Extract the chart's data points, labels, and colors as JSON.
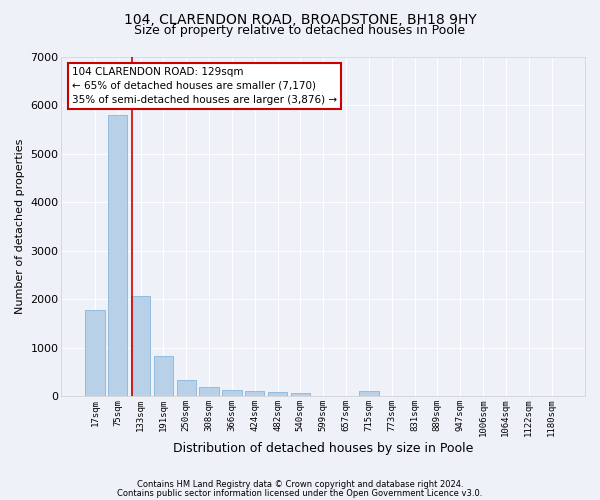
{
  "title1": "104, CLARENDON ROAD, BROADSTONE, BH18 9HY",
  "title2": "Size of property relative to detached houses in Poole",
  "xlabel": "Distribution of detached houses by size in Poole",
  "ylabel": "Number of detached properties",
  "bar_color": "#b8d0e8",
  "bar_edge_color": "#7aadd4",
  "vline_color": "#cc0000",
  "categories": [
    "17sqm",
    "75sqm",
    "133sqm",
    "191sqm",
    "250sqm",
    "308sqm",
    "366sqm",
    "424sqm",
    "482sqm",
    "540sqm",
    "599sqm",
    "657sqm",
    "715sqm",
    "773sqm",
    "831sqm",
    "889sqm",
    "947sqm",
    "1006sqm",
    "1064sqm",
    "1122sqm",
    "1180sqm"
  ],
  "values": [
    1780,
    5800,
    2060,
    820,
    340,
    190,
    120,
    100,
    90,
    70,
    0,
    0,
    100,
    0,
    0,
    0,
    0,
    0,
    0,
    0,
    0
  ],
  "ylim": [
    0,
    7000
  ],
  "yticks": [
    0,
    1000,
    2000,
    3000,
    4000,
    5000,
    6000,
    7000
  ],
  "annotation_title": "104 CLARENDON ROAD: 129sqm",
  "annotation_line1": "← 65% of detached houses are smaller (7,170)",
  "annotation_line2": "35% of semi-detached houses are larger (3,876) →",
  "footnote1": "Contains HM Land Registry data © Crown copyright and database right 2024.",
  "footnote2": "Contains public sector information licensed under the Open Government Licence v3.0.",
  "bg_color": "#eef2f8",
  "grid_color": "#ffffff",
  "title1_fontsize": 10,
  "title2_fontsize": 9,
  "vline_x_index": 1.62
}
